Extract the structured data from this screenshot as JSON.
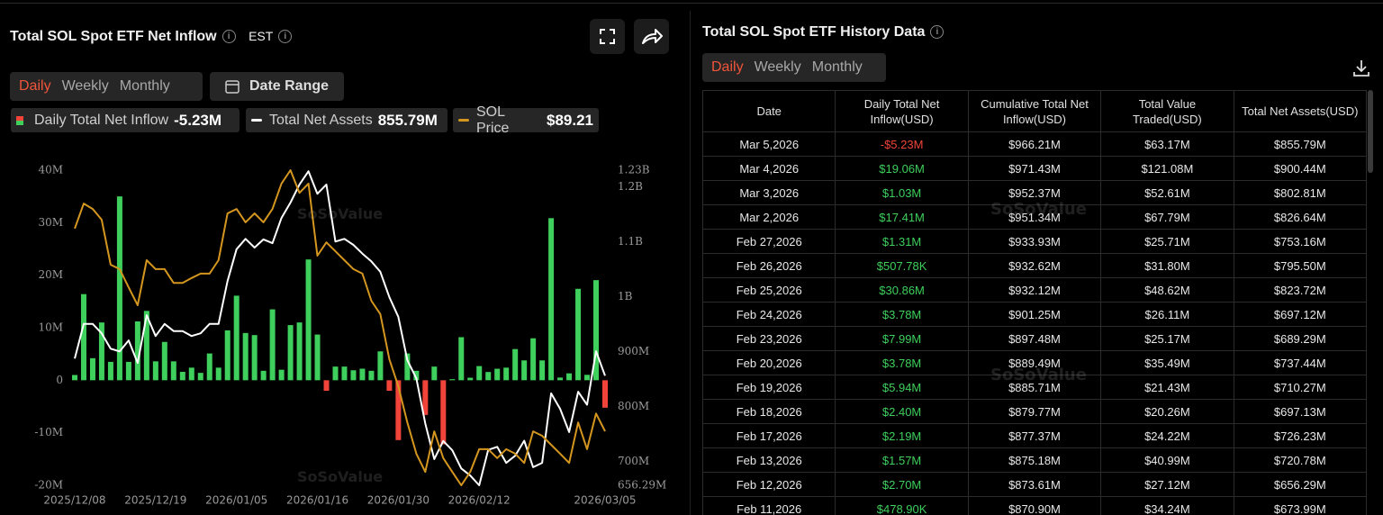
{
  "left_panel": {
    "title": "Total SOL Spot ETF Net Inflow",
    "timezone": "EST",
    "tabs": [
      "Daily",
      "Weekly",
      "Monthly"
    ],
    "date_range": "Date Range"
  },
  "watermark": "SoSoValue",
  "chart_data": {
    "type": "combo",
    "categories": [
      "2025/12/08",
      null,
      null,
      null,
      null,
      null,
      null,
      null,
      null,
      "2025/12/19",
      null,
      null,
      null,
      null,
      null,
      null,
      null,
      null,
      "2026/01/05",
      null,
      null,
      null,
      null,
      null,
      null,
      null,
      null,
      "2026/01/16",
      null,
      null,
      null,
      null,
      null,
      null,
      null,
      null,
      "2026/01/30",
      null,
      null,
      null,
      null,
      null,
      null,
      null,
      null,
      "2026/02/12",
      null,
      null,
      null,
      null,
      null,
      null,
      null,
      null,
      null,
      null,
      null,
      null,
      null,
      "2026/03/05"
    ],
    "series": [
      {
        "name": "Daily Total Net Inflow",
        "type": "bar",
        "color": "#3ecf5c",
        "negative_color": "#f0443a",
        "legend_value": "-5.23M",
        "values": [
          1.0,
          16.4,
          4.2,
          11.0,
          3.5,
          35.0,
          3.5,
          11.2,
          13.2,
          3.6,
          7.3,
          3.6,
          1.6,
          2.4,
          1.4,
          5.1,
          2.4,
          9.5,
          16.1,
          9.0,
          8.6,
          1.8,
          13.5,
          2.0,
          10.5,
          11.0,
          23.0,
          8.7,
          -2.0,
          2.6,
          2.6,
          1.9,
          2.2,
          1.8,
          5.5,
          -2.0,
          -11.4,
          5.1,
          1.8,
          -6.6,
          2.6,
          -12.2,
          0.2,
          8.2,
          0.479,
          2.7,
          1.57,
          2.19,
          2.4,
          5.94,
          3.78,
          7.99,
          3.78,
          30.86,
          0.508,
          1.31,
          17.41,
          1.03,
          19.06,
          -5.23
        ]
      },
      {
        "name": "Total Net Assets",
        "type": "line",
        "axis": "y2",
        "color": "#ffffff",
        "legend_value": "855.79M",
        "values": [
          887,
          950,
          950,
          933,
          905,
          900,
          920,
          879,
          966,
          928,
          950,
          937,
          937,
          928,
          933,
          950,
          950,
          1028,
          1086,
          1105,
          1089,
          1104,
          1097,
          1143,
          1171,
          1204,
          1228,
          1187,
          1204,
          1100,
          1105,
          1094,
          1078,
          1064,
          1045,
          999,
          963,
          884,
          851,
          769,
          704,
          737,
          720,
          687,
          673.99,
          656.29,
          720.78,
          726.23,
          697.13,
          710.27,
          737.44,
          689.29,
          697.12,
          823.72,
          795.5,
          753.16,
          826.64,
          802.81,
          900.44,
          855.79
        ]
      },
      {
        "name": "SOL Price",
        "type": "line",
        "color": "#d4961e",
        "legend_value": "$89.21",
        "values": [
          134.7,
          140.3,
          139.1,
          136.7,
          126.6,
          125.6,
          121.5,
          117.5,
          127.6,
          125.6,
          125.6,
          122.5,
          122.5,
          123.6,
          124.6,
          124.6,
          127.6,
          138.1,
          139.1,
          136.1,
          138.1,
          136.1,
          139.1,
          144.8,
          147.8,
          142.7,
          144.8,
          128.6,
          131.6,
          129.6,
          127.6,
          125.6,
          124.6,
          118.5,
          115.5,
          105.4,
          99.3,
          91.2,
          84.2,
          80.1,
          89.2,
          83.2,
          80.1,
          77.1,
          80.1,
          85.2,
          85.2,
          83.2,
          85.2,
          84.2,
          82.1,
          89.2,
          88.2,
          86.2,
          84.2,
          82.1,
          91.2,
          85.2,
          93.2,
          89.21
        ]
      }
    ],
    "ylim": [
      -20,
      40
    ],
    "yticks": [
      {
        "value": 40,
        "label": "40M"
      },
      {
        "value": 30,
        "label": "30M"
      },
      {
        "value": 20,
        "label": "20M"
      },
      {
        "value": 10,
        "label": "10M"
      },
      0,
      {
        "value": -10,
        "label": "-10M"
      },
      {
        "value": -20,
        "label": "-20M"
      }
    ],
    "y2lim": [
      656.29,
      1230
    ],
    "y2ticks": [
      {
        "value": 1230,
        "label": "1.23B"
      },
      {
        "value": 1200,
        "label": "1.2B"
      },
      {
        "value": 1100,
        "label": "1.1B"
      },
      {
        "value": 1000,
        "label": "1B"
      },
      {
        "value": 900,
        "label": "900M"
      },
      {
        "value": 800,
        "label": "800M"
      },
      {
        "value": 700,
        "label": "700M"
      },
      {
        "value": 656.29,
        "label": "656.29M"
      }
    ],
    "grid": false
  },
  "right_panel": {
    "title": "Total SOL Spot ETF History Data",
    "tabs": [
      "Daily",
      "Weekly",
      "Monthly"
    ]
  },
  "table": {
    "columns": [
      "Date",
      "Daily Total Net Inflow(USD)",
      "Cumulative Total Net Inflow(USD)",
      "Total Value Traded(USD)",
      "Total Net Assets(USD)"
    ],
    "rows": [
      [
        "Mar 5,2026",
        "-$5.23M",
        "$966.21M",
        "$63.17M",
        "$855.79M"
      ],
      [
        "Mar 4,2026",
        "$19.06M",
        "$971.43M",
        "$121.08M",
        "$900.44M"
      ],
      [
        "Mar 3,2026",
        "$1.03M",
        "$952.37M",
        "$52.61M",
        "$802.81M"
      ],
      [
        "Mar 2,2026",
        "$17.41M",
        "$951.34M",
        "$67.79M",
        "$826.64M"
      ],
      [
        "Feb 27,2026",
        "$1.31M",
        "$933.93M",
        "$25.71M",
        "$753.16M"
      ],
      [
        "Feb 26,2026",
        "$507.78K",
        "$932.62M",
        "$31.80M",
        "$795.50M"
      ],
      [
        "Feb 25,2026",
        "$30.86M",
        "$932.12M",
        "$48.62M",
        "$823.72M"
      ],
      [
        "Feb 24,2026",
        "$3.78M",
        "$901.25M",
        "$26.11M",
        "$697.12M"
      ],
      [
        "Feb 23,2026",
        "$7.99M",
        "$897.48M",
        "$25.17M",
        "$689.29M"
      ],
      [
        "Feb 20,2026",
        "$3.78M",
        "$889.49M",
        "$35.49M",
        "$737.44M"
      ],
      [
        "Feb 19,2026",
        "$5.94M",
        "$885.71M",
        "$21.43M",
        "$710.27M"
      ],
      [
        "Feb 18,2026",
        "$2.40M",
        "$879.77M",
        "$20.26M",
        "$697.13M"
      ],
      [
        "Feb 17,2026",
        "$2.19M",
        "$877.37M",
        "$24.22M",
        "$726.23M"
      ],
      [
        "Feb 13,2026",
        "$1.57M",
        "$875.18M",
        "$40.99M",
        "$720.78M"
      ],
      [
        "Feb 12,2026",
        "$2.70M",
        "$873.61M",
        "$27.12M",
        "$656.29M"
      ],
      [
        "Feb 11,2026",
        "$478.90K",
        "$870.90M",
        "$34.24M",
        "$673.99M"
      ]
    ]
  }
}
